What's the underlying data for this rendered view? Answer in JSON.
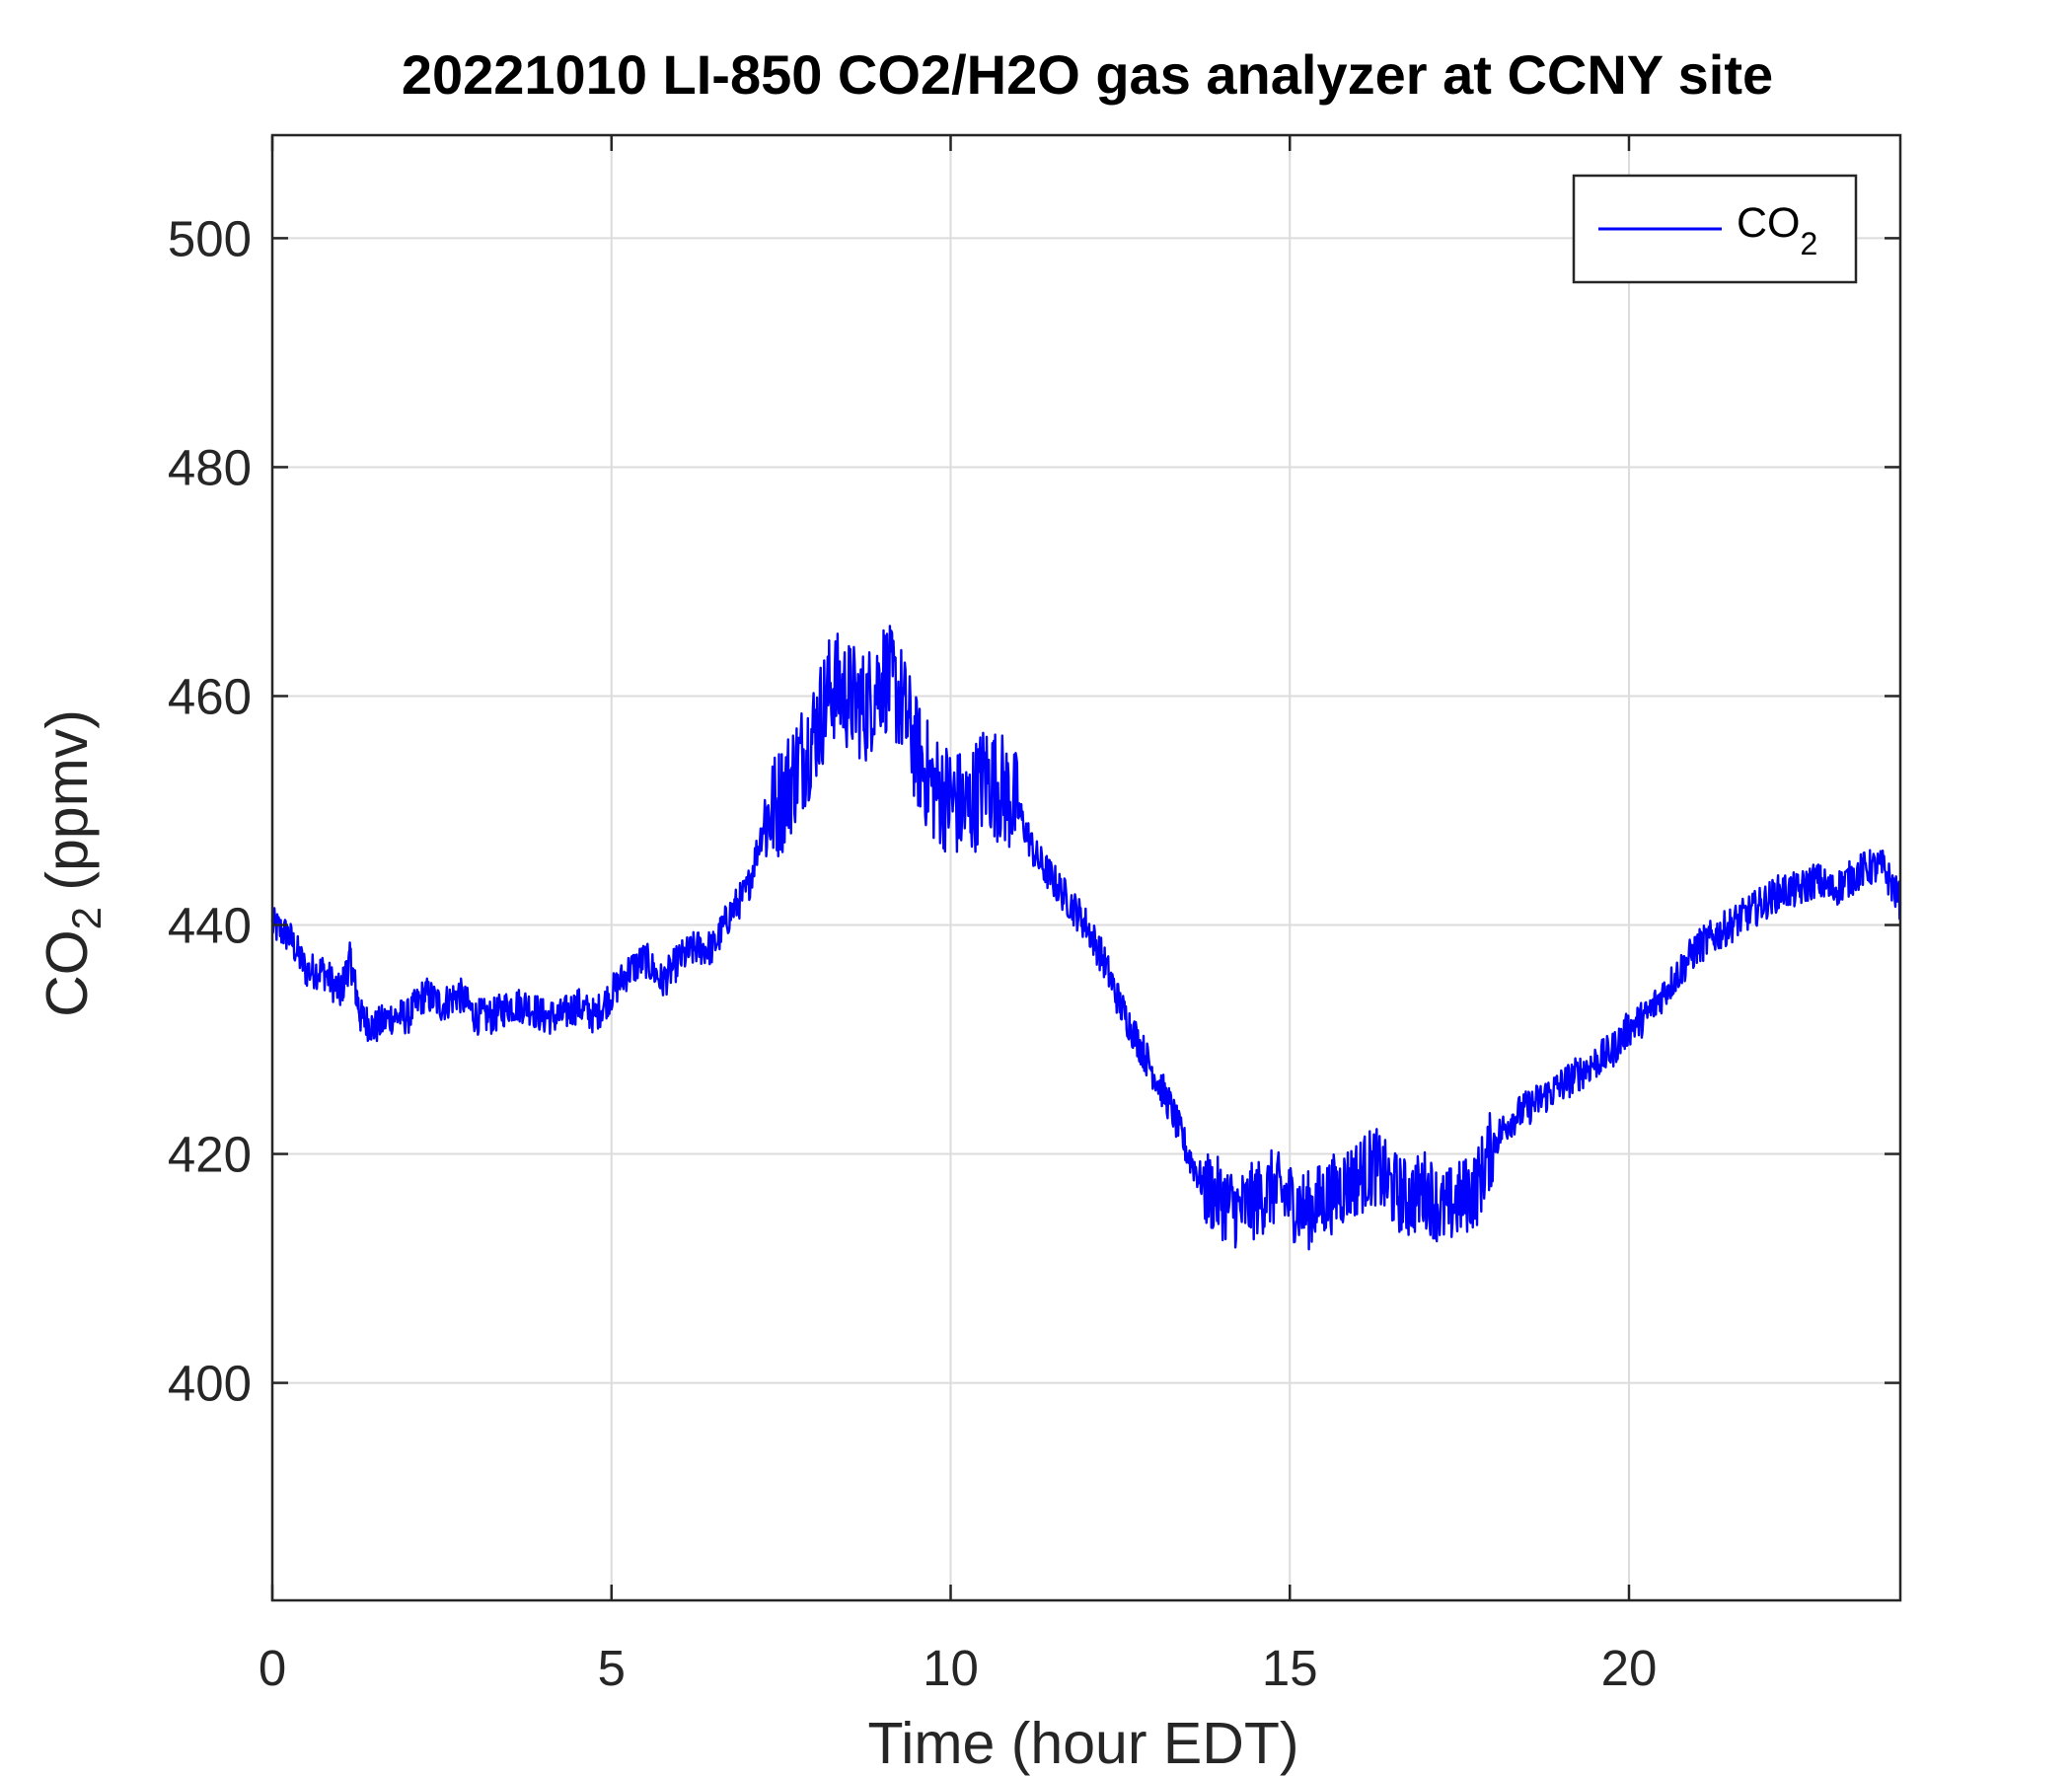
{
  "chart_data": {
    "type": "line",
    "title": "20221010 LI-850 CO2/H2O gas analyzer at CCNY site",
    "xlabel": "Time (hour EDT)",
    "ylabel": {
      "main": "CO",
      "sub": "2",
      "tail": " (ppmv)"
    },
    "xlim": [
      0,
      24
    ],
    "ylim": [
      381,
      509
    ],
    "xticks": [
      0,
      5,
      10,
      15,
      20
    ],
    "yticks": [
      400,
      420,
      440,
      460,
      480,
      500
    ],
    "grid": true,
    "legend": {
      "position": "top-right",
      "entries": [
        {
          "main": "CO",
          "sub": "2"
        }
      ]
    },
    "series": [
      {
        "name": "CO2",
        "color": "#0000ff",
        "x": [
          0,
          0.25,
          0.5,
          0.75,
          1.0,
          1.15,
          1.3,
          1.5,
          1.75,
          2.0,
          2.25,
          2.5,
          2.75,
          3.0,
          3.25,
          3.5,
          3.75,
          4.0,
          4.25,
          4.5,
          4.75,
          5.0,
          5.25,
          5.5,
          5.75,
          6.0,
          6.25,
          6.5,
          6.75,
          7.0,
          7.25,
          7.5,
          7.75,
          8.0,
          8.25,
          8.5,
          8.75,
          9.0,
          9.25,
          9.5,
          9.75,
          10.0,
          10.25,
          10.5,
          10.75,
          11.0,
          11.25,
          11.5,
          11.75,
          12.0,
          12.25,
          12.5,
          12.75,
          13.0,
          13.25,
          13.5,
          13.75,
          14.0,
          14.25,
          14.5,
          14.75,
          15.0,
          15.25,
          15.5,
          15.75,
          16.0,
          16.25,
          16.5,
          16.75,
          17.0,
          17.25,
          17.5,
          17.75,
          18.0,
          18.25,
          18.5,
          18.75,
          19.0,
          19.25,
          19.5,
          19.75,
          20.0,
          20.25,
          20.5,
          20.75,
          21.0,
          21.25,
          21.5,
          21.75,
          22.0,
          22.25,
          22.5,
          22.75,
          23.0,
          23.25,
          23.5,
          23.75,
          24.0
        ],
        "y": [
          440,
          439,
          436,
          436,
          434,
          437,
          432,
          431,
          432,
          432,
          434,
          433,
          434,
          432,
          432,
          433,
          433,
          432,
          432,
          433,
          432,
          434,
          436,
          437,
          435,
          437,
          438,
          438,
          441,
          443,
          449,
          451,
          454,
          457,
          461,
          460,
          459,
          462,
          460,
          455,
          452,
          451,
          450,
          453,
          452,
          450,
          446,
          444,
          442,
          440,
          437,
          433,
          430,
          427,
          424,
          420,
          417,
          416,
          415,
          416,
          417,
          416,
          415,
          416,
          417,
          418,
          419,
          417,
          416,
          417,
          415,
          416,
          417,
          421,
          423,
          424,
          425,
          426,
          427,
          428,
          429,
          431,
          432,
          434,
          436,
          438,
          439,
          440,
          441,
          442,
          443,
          443,
          444,
          443,
          444,
          445,
          445,
          442
        ]
      }
    ]
  }
}
